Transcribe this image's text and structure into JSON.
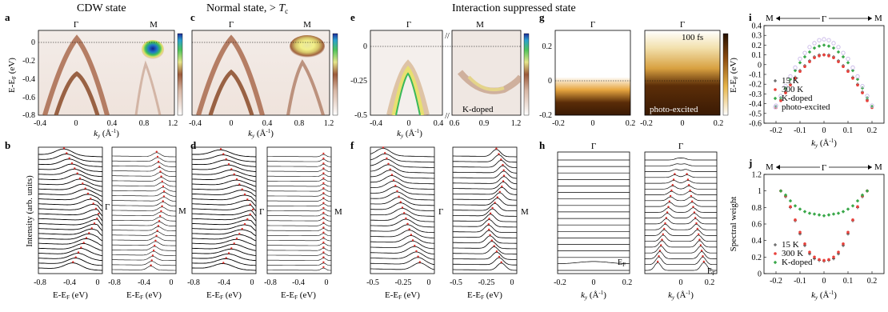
{
  "headings": {
    "cdw": "CDW state",
    "normal_prefix": "Normal state, > ",
    "normal_T": "T",
    "normal_sub": "c",
    "suppressed": "Interaction suppressed state"
  },
  "panel_letters": [
    "a",
    "b",
    "c",
    "d",
    "e",
    "f",
    "g",
    "h",
    "i",
    "j"
  ],
  "symbols": {
    "gamma": "Γ",
    "m": "M"
  },
  "axis_labels": {
    "energy_main": "E-E",
    "energy_sub": "F",
    "energy_unit": " (eV)",
    "ky_k": "k",
    "ky_sub": "y",
    "ky_unit": " (Å",
    "ky_exp": "-1",
    "ky_close": ")",
    "intensity": "Intensity (arb. units)",
    "spectral_weight": "Spectral weight",
    "ef": "E",
    "ef_sub": "F"
  },
  "annotations": {
    "k_doped": "K-doped",
    "photo_excited": "photo-excited",
    "time": "100 fs",
    "axis_break": "//"
  },
  "ticks": {
    "energy_a": [
      "0",
      "-0.2",
      "-0.4",
      "-0.6",
      "-0.8"
    ],
    "ky_a": [
      "-0.4",
      "0",
      "0.4",
      "0.8",
      "1.2"
    ],
    "energy_e": [
      "0",
      "-0.25",
      "-0.5"
    ],
    "ky_e_left": [
      "-0.4",
      "0",
      "0.4"
    ],
    "ky_e_right": [
      "0.6",
      "0.9",
      "1.2"
    ],
    "energy_g": [
      "0.2",
      "0",
      "-0.2"
    ],
    "ky_g": [
      "-0.2",
      "0",
      "0.2"
    ],
    "e_b": [
      "-0.8",
      "-0.4",
      "0"
    ],
    "e_b2": [
      "-0.8",
      "-0.4",
      "0"
    ],
    "e_f": [
      "-0.5",
      "-0.25",
      "0"
    ],
    "e_f2": [
      "-0.5",
      "-0.25",
      "0"
    ],
    "ky_h": [
      "-0.2",
      "0",
      "0.2"
    ],
    "ky_h2": [
      "0",
      "0.2"
    ],
    "i_y": [
      "0.4",
      "0.3",
      "0.2",
      "0.1",
      "0",
      "-0.1",
      "-0.2",
      "-0.3",
      "-0.4",
      "-0.5",
      "-0.6"
    ],
    "i_x": [
      "-0.2",
      "-0.1",
      "0",
      "0.1",
      "0.2"
    ],
    "j_y": [
      "1.2",
      "1",
      "0.8",
      "0.6",
      "0.4",
      "0.2",
      "0"
    ],
    "j_x": [
      "-0.2",
      "-0.1",
      "0",
      "0.1",
      "0.2"
    ]
  },
  "colors": {
    "s15": "#404040",
    "s300": "#e8413b",
    "kdoped": "#3aa84a",
    "photo": "#c9b8e8",
    "peak_marker": "#d9302a"
  },
  "chart_data": [
    {
      "panel": "i",
      "type": "scatter",
      "xlabel": "k_y (Å^-1)",
      "ylabel": "E-E_F (eV)",
      "xlim": [
        -0.25,
        0.25
      ],
      "ylim": [
        -0.6,
        0.4
      ],
      "legend_placement": "bottom-left",
      "x": [
        -0.2,
        -0.18,
        -0.16,
        -0.14,
        -0.12,
        -0.1,
        -0.08,
        -0.06,
        -0.04,
        -0.02,
        0,
        0.02,
        0.04,
        0.06,
        0.08,
        0.1,
        0.12,
        0.14,
        0.16,
        0.18,
        0.2
      ],
      "series": [
        {
          "name": "15 K",
          "values": [
            -0.43,
            -0.36,
            -0.28,
            -0.2,
            -0.13,
            -0.06,
            -0.01,
            0.04,
            0.08,
            0.1,
            0.1,
            0.1,
            0.08,
            0.04,
            -0.01,
            -0.06,
            -0.13,
            -0.2,
            -0.28,
            -0.36,
            -0.43
          ]
        },
        {
          "name": "300 K",
          "values": [
            -0.44,
            -0.37,
            -0.29,
            -0.21,
            -0.14,
            -0.07,
            -0.02,
            0.03,
            0.07,
            0.09,
            0.1,
            0.09,
            0.07,
            0.03,
            -0.02,
            -0.07,
            -0.14,
            -0.21,
            -0.29,
            -0.37,
            -0.44
          ]
        },
        {
          "name": "K-doped",
          "values": [
            -0.43,
            -0.34,
            -0.24,
            -0.15,
            -0.06,
            0.02,
            0.08,
            0.13,
            0.17,
            0.19,
            0.2,
            0.19,
            0.17,
            0.13,
            0.08,
            0.02,
            -0.06,
            -0.15,
            -0.24,
            -0.34,
            -0.43
          ]
        },
        {
          "name": "photo-excited",
          "values": [
            -0.42,
            -0.32,
            -0.22,
            -0.12,
            -0.03,
            0.06,
            0.12,
            0.18,
            0.22,
            0.25,
            0.26,
            0.25,
            0.22,
            0.18,
            0.12,
            0.06,
            -0.03,
            -0.12,
            -0.22,
            -0.32,
            -0.42
          ]
        }
      ]
    },
    {
      "panel": "j",
      "type": "scatter",
      "xlabel": "k_y (Å^-1)",
      "ylabel": "Spectral weight",
      "xlim": [
        -0.25,
        0.25
      ],
      "ylim": [
        0,
        1.2
      ],
      "legend_placement": "bottom-left",
      "x": [
        -0.18,
        -0.16,
        -0.14,
        -0.12,
        -0.1,
        -0.08,
        -0.06,
        -0.04,
        -0.02,
        0,
        0.02,
        0.04,
        0.06,
        0.08,
        0.1,
        0.12,
        0.14,
        0.16,
        0.18
      ],
      "series": [
        {
          "name": "15 K",
          "values": [
            1.0,
            0.93,
            0.8,
            0.64,
            0.48,
            0.34,
            0.24,
            0.18,
            0.16,
            0.15,
            0.16,
            0.18,
            0.24,
            0.34,
            0.48,
            0.64,
            0.8,
            0.93,
            1.0
          ]
        },
        {
          "name": "300 K",
          "values": [
            1.0,
            0.94,
            0.81,
            0.65,
            0.5,
            0.36,
            0.26,
            0.2,
            0.17,
            0.16,
            0.17,
            0.2,
            0.26,
            0.36,
            0.5,
            0.65,
            0.81,
            0.94,
            1.0
          ]
        },
        {
          "name": "K-doped",
          "values": [
            1.0,
            0.95,
            0.88,
            0.82,
            0.78,
            0.75,
            0.73,
            0.72,
            0.71,
            0.7,
            0.71,
            0.72,
            0.73,
            0.75,
            0.78,
            0.82,
            0.88,
            0.95,
            1.0
          ]
        }
      ]
    }
  ]
}
